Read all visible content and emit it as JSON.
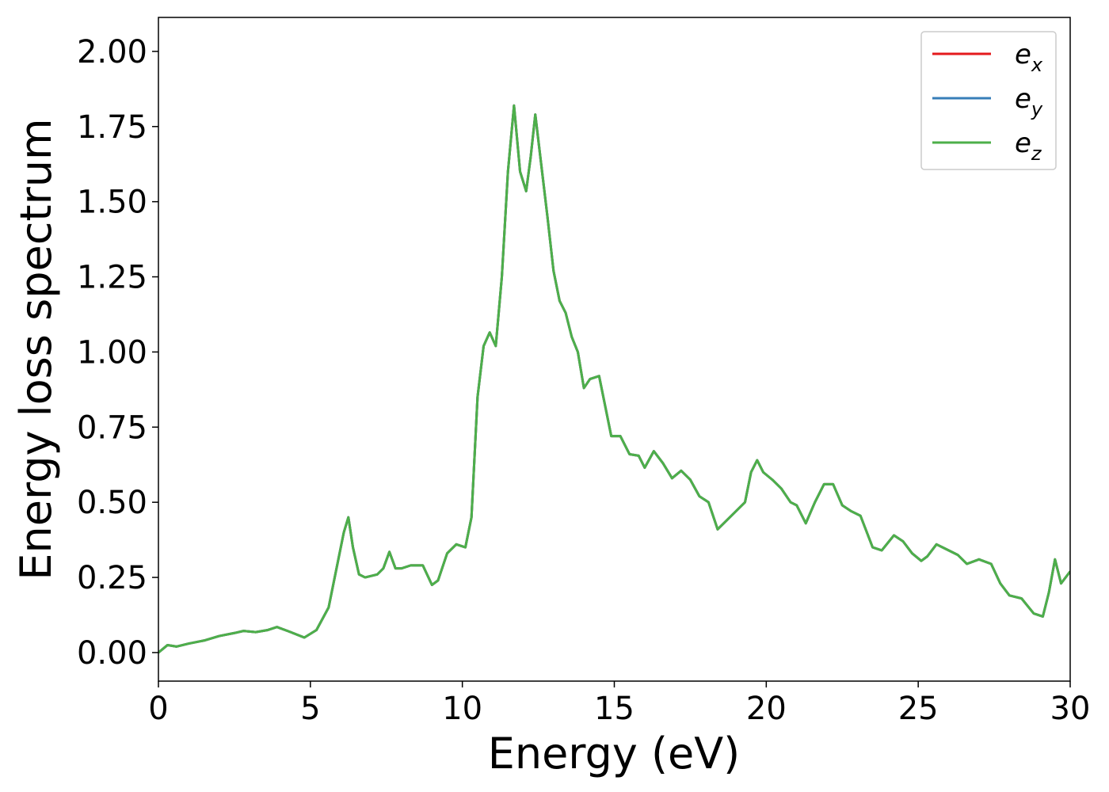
{
  "chart_data": {
    "type": "line",
    "xlabel": "Energy (eV)",
    "ylabel": "Energy loss spectrum",
    "xlim": [
      0,
      30
    ],
    "ylim": [
      -0.095,
      2.113
    ],
    "xticks": [
      0,
      5,
      10,
      15,
      20,
      25,
      30
    ],
    "yticks": [
      {
        "value": 0,
        "label": "0.00"
      },
      {
        "value": 0.25,
        "label": "0.25"
      },
      {
        "value": 0.5,
        "label": "0.50"
      },
      {
        "value": 0.75,
        "label": "0.75"
      },
      {
        "value": 1,
        "label": "1.00"
      },
      {
        "value": 1.25,
        "label": "1.25"
      },
      {
        "value": 1.5,
        "label": "1.50"
      },
      {
        "value": 1.75,
        "label": "1.75"
      },
      {
        "value": 2,
        "label": "2.00"
      }
    ],
    "legend": "upper right",
    "x": [
      0,
      0.3,
      0.6,
      1.0,
      1.5,
      2.0,
      2.5,
      2.8,
      3.2,
      3.6,
      3.9,
      4.3,
      4.8,
      5.2,
      5.6,
      5.9,
      6.1,
      6.25,
      6.4,
      6.6,
      6.8,
      7.0,
      7.2,
      7.4,
      7.6,
      7.8,
      8.0,
      8.3,
      8.7,
      9.0,
      9.2,
      9.5,
      9.8,
      10.1,
      10.3,
      10.5,
      10.7,
      10.9,
      11.1,
      11.3,
      11.5,
      11.7,
      11.9,
      12.1,
      12.25,
      12.4,
      12.6,
      12.8,
      13.0,
      13.2,
      13.4,
      13.6,
      13.8,
      14.0,
      14.2,
      14.5,
      14.7,
      14.9,
      15.2,
      15.5,
      15.8,
      16.0,
      16.3,
      16.6,
      16.9,
      17.2,
      17.5,
      17.8,
      18.1,
      18.4,
      18.7,
      19.0,
      19.3,
      19.5,
      19.7,
      19.9,
      20.2,
      20.5,
      20.8,
      21.0,
      21.3,
      21.6,
      21.9,
      22.2,
      22.5,
      22.8,
      23.1,
      23.5,
      23.8,
      24.2,
      24.5,
      24.8,
      25.1,
      25.3,
      25.6,
      25.9,
      26.3,
      26.6,
      27.0,
      27.4,
      27.7,
      28.0,
      28.4,
      28.8,
      29.1,
      29.3,
      29.5,
      29.7,
      30.0
    ],
    "series": [
      {
        "name": "e_x",
        "color": "#e41a1c",
        "values": [
          0.0,
          0.025,
          0.02,
          0.03,
          0.04,
          0.055,
          0.065,
          0.072,
          0.068,
          0.075,
          0.085,
          0.07,
          0.05,
          0.075,
          0.15,
          0.3,
          0.4,
          0.45,
          0.35,
          0.26,
          0.25,
          0.255,
          0.26,
          0.28,
          0.335,
          0.28,
          0.28,
          0.29,
          0.29,
          0.225,
          0.24,
          0.33,
          0.36,
          0.35,
          0.45,
          0.85,
          1.02,
          1.065,
          1.02,
          1.25,
          1.6,
          1.82,
          1.6,
          1.535,
          1.65,
          1.79,
          1.62,
          1.45,
          1.27,
          1.17,
          1.13,
          1.05,
          1.0,
          0.88,
          0.91,
          0.92,
          0.82,
          0.72,
          0.72,
          0.66,
          0.655,
          0.615,
          0.67,
          0.63,
          0.58,
          0.605,
          0.575,
          0.52,
          0.5,
          0.41,
          0.44,
          0.47,
          0.5,
          0.6,
          0.64,
          0.6,
          0.575,
          0.545,
          0.5,
          0.49,
          0.43,
          0.5,
          0.56,
          0.56,
          0.49,
          0.47,
          0.455,
          0.35,
          0.34,
          0.39,
          0.37,
          0.33,
          0.305,
          0.32,
          0.36,
          0.345,
          0.325,
          0.295,
          0.31,
          0.295,
          0.23,
          0.19,
          0.18,
          0.13,
          0.12,
          0.2,
          0.31,
          0.23,
          0.27
        ]
      },
      {
        "name": "e_y",
        "color": "#377eb8",
        "values": [
          0.0,
          0.025,
          0.02,
          0.03,
          0.04,
          0.055,
          0.065,
          0.072,
          0.068,
          0.075,
          0.085,
          0.07,
          0.05,
          0.075,
          0.15,
          0.3,
          0.4,
          0.45,
          0.35,
          0.26,
          0.25,
          0.255,
          0.26,
          0.28,
          0.335,
          0.28,
          0.28,
          0.29,
          0.29,
          0.225,
          0.24,
          0.33,
          0.36,
          0.35,
          0.45,
          0.85,
          1.02,
          1.065,
          1.02,
          1.25,
          1.6,
          1.82,
          1.6,
          1.535,
          1.65,
          1.79,
          1.62,
          1.45,
          1.27,
          1.17,
          1.13,
          1.05,
          1.0,
          0.88,
          0.91,
          0.92,
          0.82,
          0.72,
          0.72,
          0.66,
          0.655,
          0.615,
          0.67,
          0.63,
          0.58,
          0.605,
          0.575,
          0.52,
          0.5,
          0.41,
          0.44,
          0.47,
          0.5,
          0.6,
          0.64,
          0.6,
          0.575,
          0.545,
          0.5,
          0.49,
          0.43,
          0.5,
          0.56,
          0.56,
          0.49,
          0.47,
          0.455,
          0.35,
          0.34,
          0.39,
          0.37,
          0.33,
          0.305,
          0.32,
          0.36,
          0.345,
          0.325,
          0.295,
          0.31,
          0.295,
          0.23,
          0.19,
          0.18,
          0.13,
          0.12,
          0.2,
          0.31,
          0.23,
          0.27
        ]
      },
      {
        "name": "e_z",
        "color": "#4daf4a",
        "values": [
          0.0,
          0.025,
          0.02,
          0.03,
          0.04,
          0.055,
          0.065,
          0.072,
          0.068,
          0.075,
          0.085,
          0.07,
          0.05,
          0.075,
          0.15,
          0.3,
          0.4,
          0.45,
          0.35,
          0.26,
          0.25,
          0.255,
          0.26,
          0.28,
          0.335,
          0.28,
          0.28,
          0.29,
          0.29,
          0.225,
          0.24,
          0.33,
          0.36,
          0.35,
          0.45,
          0.85,
          1.02,
          1.065,
          1.02,
          1.25,
          1.6,
          1.82,
          1.6,
          1.535,
          1.65,
          1.79,
          1.62,
          1.45,
          1.27,
          1.17,
          1.13,
          1.05,
          1.0,
          0.88,
          0.91,
          0.92,
          0.82,
          0.72,
          0.72,
          0.66,
          0.655,
          0.615,
          0.67,
          0.63,
          0.58,
          0.605,
          0.575,
          0.52,
          0.5,
          0.41,
          0.44,
          0.47,
          0.5,
          0.6,
          0.64,
          0.6,
          0.575,
          0.545,
          0.5,
          0.49,
          0.43,
          0.5,
          0.56,
          0.56,
          0.49,
          0.47,
          0.455,
          0.35,
          0.34,
          0.39,
          0.37,
          0.33,
          0.305,
          0.32,
          0.36,
          0.345,
          0.325,
          0.295,
          0.31,
          0.295,
          0.23,
          0.19,
          0.18,
          0.13,
          0.12,
          0.2,
          0.31,
          0.23,
          0.27
        ]
      }
    ]
  }
}
